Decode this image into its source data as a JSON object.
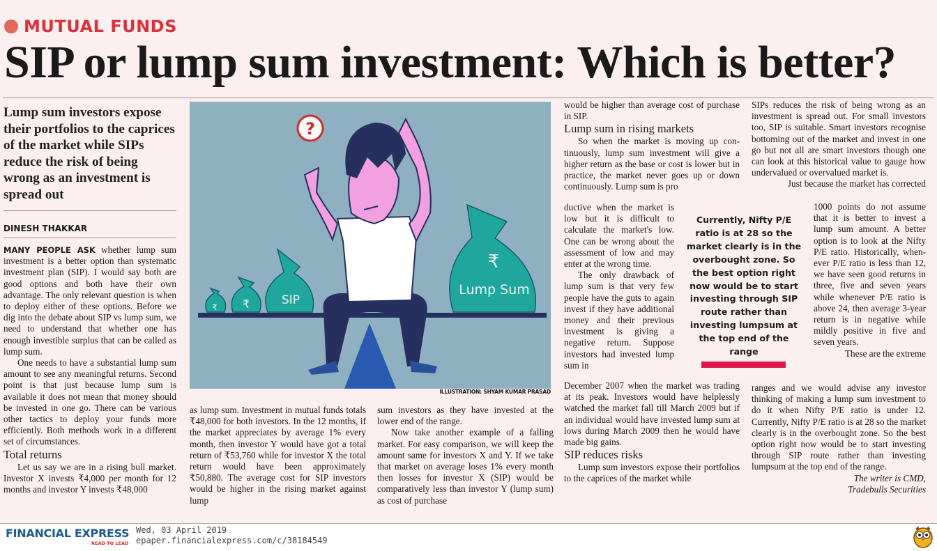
{
  "section": "MUTUAL FUNDS",
  "headline": "SIP or lump sum investment: Which is better?",
  "deck": "Lump sum investors expose their portfolios to the caprices of the market while SIPs reduce the risk of being wrong as an investment is spread out",
  "byline": "DINESH THAKKAR",
  "col1": {
    "lead": "MANY PEOPLE ASK",
    "p1": " whether lump sum investment is a better option than sys­tematic investment plan (SIP). I would say both are good options and both have their own advantage. The only relevant question is when to deploy either of these options. Before we dig into the debate about SIP vs lump sum, we need to understand that whether one has enough investible sur­plus that can be called as lump sum.",
    "p2": "One needs to have a substantial lump sum amount to see any meaningful returns. Second point is that just because lump sum is available it does not mean that money should be invested in one go. There can be various other tactics to deploy your funds more efficiently. Both methods work in a different set of circumstances.",
    "subhead": "Total returns",
    "p3": "Let us say we are in a rising bull market. Investor X invests ₹4,000 per month for 12 months and investor Y invests ₹48,000"
  },
  "col2": {
    "p1": "as lump sum. Investment in mutual funds totals ₹48,000 for both investors. In the 12 months, if the market appreciates by aver­age 1% every month, then investor Y would have got a total return of ₹53,760 while for investor X the total return would have been approximately ₹50,880. The average cost for SIP investors would be higher in the rising market against lump"
  },
  "col3": {
    "p1": "sum investors as they have invested at the lower end of the range.",
    "p2": "Now take another example of a falling market. For easy comparison, we will keep the amount same for investors X and Y. If we take that market on average loses 1% every month then losses for investor X (SIP) would be comparatively less than investor Y (lump sum) as cost of purchase"
  },
  "col4": {
    "p0": "would be higher than average cost of pur­chase in SIP.",
    "subhead1": "Lump sum in rising markets",
    "p1a": "So when the market is moving up con­tinuously, lump sum investment will give a higher return as the base or cost is lower but in practice, the market never goes up or down continuously. Lump sum is pro­",
    "p1b": "ductive when the market is low but it is difficult to calculate the market's low. One can be wrong about the assessment of low and may enter at the wrong time.",
    "p2a": "The only drawback of lump sum is that very few people have the guts to again invest if they have additional money and their previous invest­ment is giving a negative return. Suppose investors had invested lump sum in",
    "p2b": "December 2007 when the market was trading at its peak. Investors would have helplessly watched the market fall till March 2009 but if an individual would have invested lump sum at lows during March 2009 then he would have made big gains.",
    "subhead2": "SIP reduces risks",
    "p3": "Lump sum investors expose their port­folios to the caprices of the market while"
  },
  "col5": {
    "p0": "SIPs reduces the risk of being wrong as an investment is spread out. For small investors too, SIP is suitable. Smart investors recognise bottoming out of the market and invest in one go but not all are smart investors though one can look at this historical value to gauge how under­valued or overvalued market is.",
    "p1a": "Just because the market has corrected",
    "p1b": "1000 points do not assume that it is better to invest a lump sum amount. A better option is to look at the Nifty P/E ratio. Historically, when­ever P/E ratio is less than 12, we have seen good returns in three, five and seven years while when­ever P/E ratio is above 24, then average 3-year return is in negative while mildly positive in five and seven years.",
    "p2a": "These are the extreme",
    "p2b": "ranges and we would advise any investor thinking of making a lump sum invest­ment to do it when Nifty P/E ratio is under 12. Currently, Nifty P/E ratio is at 28 so the market clearly is in the over­bought zone. So the best option right now would be to start investing through SIP route rather than investing lumpsum at the top end of the range.",
    "sign1": "The writer is CMD,",
    "sign2": "Tradebulls Securities"
  },
  "callout": "Currently, Nifty P/E ratio is at 28 so the market clearly is in the overbought zone. So the best option right now would be to start investing through SIP route rather than investing lumpsum at the top end of the range",
  "illustration": {
    "bag_small_symbol": "₹",
    "bag_medium_symbol": "₹",
    "bag_sip_label": "SIP",
    "bag_lump_symbol": "₹",
    "bag_lump_label": "Lump Sum",
    "question_mark": "?",
    "credit": "ILLUSTRATION: SHYAM KUMAR PRASAD",
    "colors": {
      "background": "#8fb0c0",
      "bags": "#1fa79c",
      "accent": "#e0174f"
    }
  },
  "footer": {
    "brand": "FINANCIAL EXPRESS",
    "tagline": "READ TO LEAD",
    "date": "Wed, 03 April 2019",
    "url": "epaper.financialexpress.com/c/38184549",
    "mascot_icon": "owl-icon"
  }
}
